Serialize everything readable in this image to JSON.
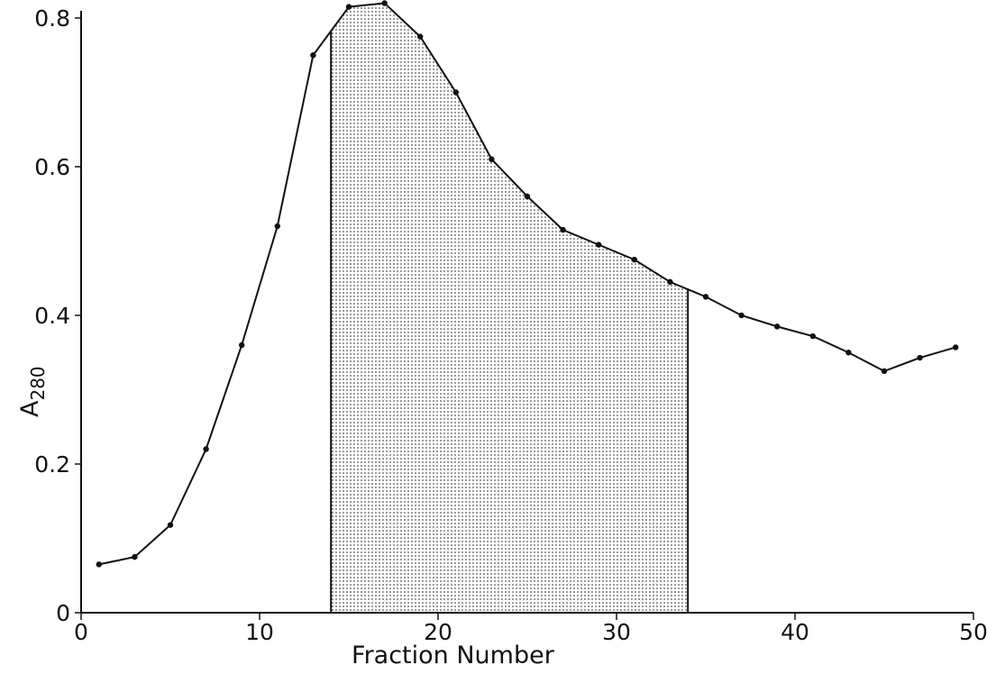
{
  "chart_data": {
    "type": "line",
    "xlabel": "Fraction Number",
    "ylabel_main": "A",
    "ylabel_sub": "280",
    "xlim": [
      0,
      50
    ],
    "ylim": [
      0,
      0.8
    ],
    "x_ticks": [
      {
        "value": 0,
        "label": "0"
      },
      {
        "value": 10,
        "label": "10"
      },
      {
        "value": 20,
        "label": "20"
      },
      {
        "value": 30,
        "label": "30"
      },
      {
        "value": 40,
        "label": "40"
      },
      {
        "value": 50,
        "label": "50"
      }
    ],
    "y_ticks": [
      {
        "value": 0,
        "label": "0"
      },
      {
        "value": 0.2,
        "label": "0.2"
      },
      {
        "value": 0.4,
        "label": "0.4"
      },
      {
        "value": 0.6,
        "label": "0.6"
      },
      {
        "value": 0.8,
        "label": "0.8"
      }
    ],
    "grid": false,
    "shaded_region": {
      "x_start": 14,
      "x_end": 34
    },
    "series": [
      {
        "x": [
          1,
          3,
          5,
          7,
          9,
          11,
          13,
          15,
          17,
          19,
          21,
          23,
          25,
          27,
          29,
          31,
          33,
          35,
          37,
          39,
          41,
          43,
          45,
          47,
          49
        ],
        "y": [
          0.065,
          0.075,
          0.118,
          0.22,
          0.36,
          0.52,
          0.75,
          0.815,
          0.82,
          0.775,
          0.7,
          0.61,
          0.56,
          0.515,
          0.495,
          0.475,
          0.445,
          0.425,
          0.4,
          0.385,
          0.372,
          0.35,
          0.325,
          0.343,
          0.357
        ]
      }
    ],
    "colors": {
      "line": "#111111",
      "stipple": "#555555",
      "axis": "#111111"
    }
  }
}
